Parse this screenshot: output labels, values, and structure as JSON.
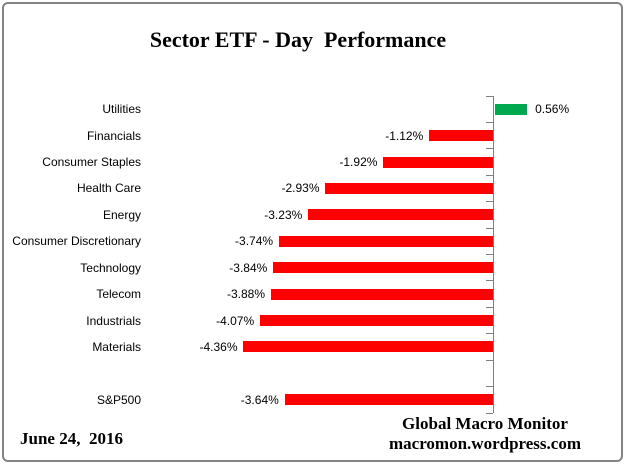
{
  "title": "Sector ETF - Day  Performance",
  "footer": {
    "date": "June 24,  2016",
    "brand_line1": "Global Macro Monitor",
    "brand_line2": "macromon.wordpress.com"
  },
  "colors": {
    "positive_bar": "#00A94F",
    "negative_bar": "#FF0000",
    "axis": "#808080",
    "frame_border": "#848484",
    "text": "#000000"
  },
  "chart_data": {
    "type": "bar",
    "orientation": "horizontal",
    "title": "Sector ETF - Day  Performance",
    "categories": [
      "Utilities",
      "Financials",
      "Consumer Staples",
      "Health Care",
      "Energy",
      "Consumer Discretionary",
      "Technology",
      "Telecom",
      "Industrials",
      "Materials",
      "S&P500"
    ],
    "values": [
      0.56,
      -1.12,
      -1.92,
      -2.93,
      -3.23,
      -3.74,
      -3.84,
      -3.88,
      -4.07,
      -4.36,
      -3.64
    ],
    "value_labels": [
      "0.56%",
      "-1.12%",
      "-1.92%",
      "-2.93%",
      "-3.23%",
      "-3.74%",
      "-3.84%",
      "-3.88%",
      "-4.07%",
      "-4.36%",
      "-3.64%"
    ],
    "separator_gap_before_index": 10,
    "xlabel": "",
    "ylabel": "",
    "legend": false,
    "gridlines": false,
    "axis_labels_visible": false
  }
}
